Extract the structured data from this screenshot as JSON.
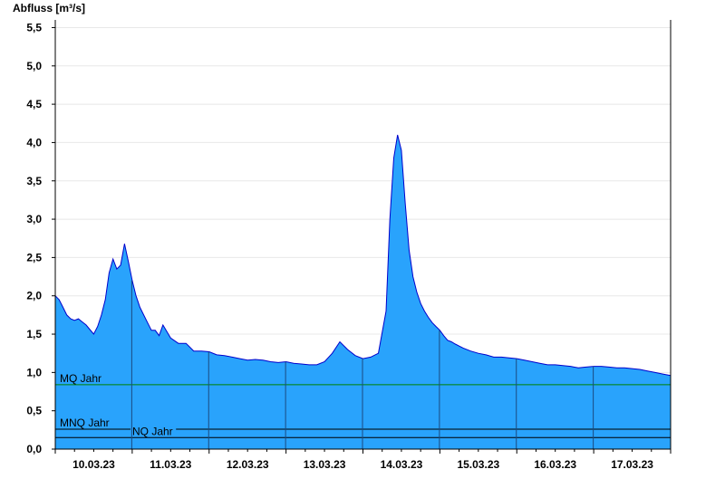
{
  "chart_data": {
    "type": "area",
    "ylabel": "Abfluss [m³/s]",
    "xlabel": "",
    "ylim": [
      0,
      5.6
    ],
    "y_ticks": [
      0,
      0.5,
      1.0,
      1.5,
      2.0,
      2.5,
      3.0,
      3.5,
      4.0,
      4.5,
      5.0,
      5.5
    ],
    "y_tick_labels": [
      "0,0",
      "0,5",
      "1,0",
      "1,5",
      "2,0",
      "2,5",
      "3,0",
      "3,5",
      "4,0",
      "4,5",
      "5,0",
      "5,5"
    ],
    "xlim_days": [
      0,
      8
    ],
    "x_tick_labels": [
      "10.03.23",
      "11.03.23",
      "12.03.23",
      "13.03.23",
      "14.03.23",
      "15.03.23",
      "16.03.23",
      "17.03.23"
    ],
    "grid": true,
    "fill_color": "#29a3fc",
    "line_color": "#0000cc",
    "reference_lines": [
      {
        "label": "MQ Jahr",
        "value": 0.84,
        "color": "#008000"
      },
      {
        "label": "MNQ Jahr",
        "value": 0.26,
        "color": "#000000"
      },
      {
        "label": "NQ Jahr",
        "value": 0.15,
        "color": "#000000"
      }
    ],
    "series": [
      {
        "x": [
          0.0,
          0.05,
          0.1,
          0.15,
          0.2,
          0.25,
          0.3,
          0.35,
          0.4,
          0.45,
          0.5,
          0.55,
          0.6,
          0.65,
          0.7,
          0.75,
          0.8,
          0.85,
          0.9,
          0.95,
          1.0,
          1.05,
          1.1,
          1.15,
          1.2,
          1.25,
          1.3,
          1.35,
          1.4,
          1.5,
          1.6,
          1.7,
          1.8,
          1.9,
          2.0,
          2.1,
          2.2,
          2.3,
          2.4,
          2.5,
          2.6,
          2.7,
          2.8,
          2.9,
          3.0,
          3.1,
          3.2,
          3.3,
          3.4,
          3.5,
          3.6,
          3.7,
          3.8,
          3.9,
          4.0,
          4.1,
          4.2,
          4.3,
          4.35,
          4.4,
          4.45,
          4.5,
          4.55,
          4.6,
          4.65,
          4.7,
          4.75,
          4.8,
          4.85,
          4.9,
          4.95,
          5.0,
          5.05,
          5.1,
          5.15,
          5.2,
          5.3,
          5.4,
          5.5,
          5.6,
          5.7,
          5.8,
          5.9,
          6.0,
          6.1,
          6.2,
          6.3,
          6.4,
          6.5,
          6.6,
          6.7,
          6.8,
          6.9,
          7.0,
          7.1,
          7.2,
          7.3,
          7.4,
          7.5,
          7.6,
          7.7,
          7.8,
          7.9,
          8.0
        ],
        "y": [
          2.0,
          1.95,
          1.85,
          1.75,
          1.7,
          1.68,
          1.7,
          1.66,
          1.62,
          1.56,
          1.5,
          1.6,
          1.75,
          1.95,
          2.3,
          2.48,
          2.35,
          2.4,
          2.68,
          2.45,
          2.2,
          2.0,
          1.85,
          1.75,
          1.65,
          1.55,
          1.55,
          1.48,
          1.62,
          1.45,
          1.38,
          1.38,
          1.28,
          1.28,
          1.27,
          1.23,
          1.22,
          1.2,
          1.18,
          1.16,
          1.17,
          1.16,
          1.14,
          1.13,
          1.14,
          1.12,
          1.11,
          1.1,
          1.1,
          1.14,
          1.25,
          1.4,
          1.3,
          1.22,
          1.18,
          1.2,
          1.25,
          1.8,
          3.0,
          3.8,
          4.1,
          3.9,
          3.2,
          2.6,
          2.25,
          2.05,
          1.9,
          1.8,
          1.72,
          1.65,
          1.6,
          1.55,
          1.48,
          1.42,
          1.4,
          1.37,
          1.32,
          1.28,
          1.25,
          1.23,
          1.2,
          1.2,
          1.19,
          1.18,
          1.16,
          1.14,
          1.12,
          1.1,
          1.1,
          1.09,
          1.08,
          1.06,
          1.07,
          1.08,
          1.08,
          1.07,
          1.06,
          1.06,
          1.05,
          1.04,
          1.02,
          1.0,
          0.98,
          0.96
        ]
      }
    ]
  }
}
